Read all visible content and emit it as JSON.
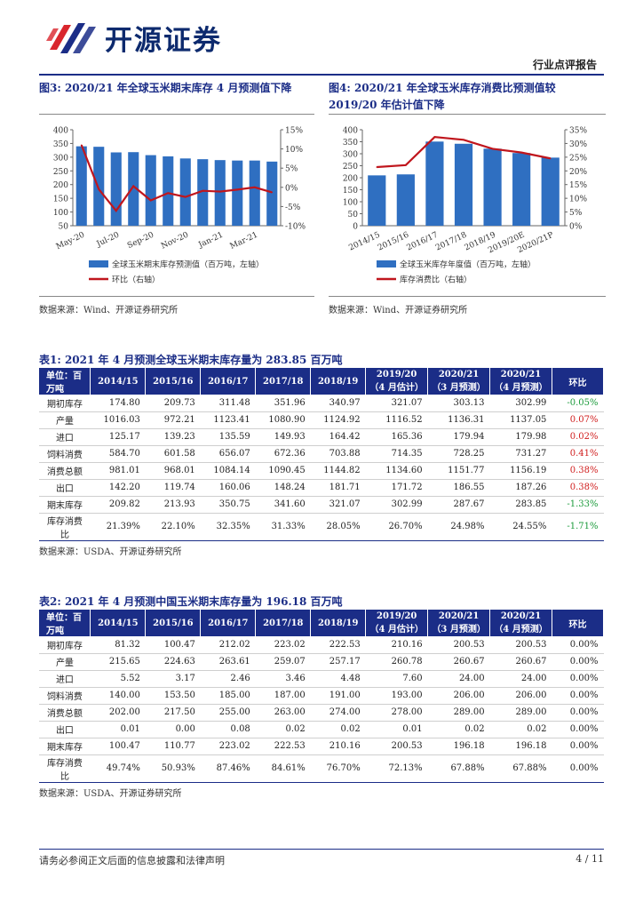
{
  "header": {
    "brand_name": "开源证券",
    "report_type": "行业点评报告"
  },
  "fig3": {
    "title": "图3: 2020/21 年全球玉米期末库存 4 月预测值下降",
    "legend_bar": "全球玉米期末库存预测值（百万吨，左轴）",
    "legend_line": "环比（右轴）",
    "source": "数据来源：Wind、开源证券研究所",
    "colors": {
      "bar": "#2f6fc1",
      "line": "#c0161d"
    },
    "chart_data": {
      "type": "bar+line",
      "categories": [
        "May-20",
        "Jun-20",
        "Jul-20",
        "Aug-20",
        "Sep-20",
        "Oct-20",
        "Nov-20",
        "Dec-20",
        "Jan-21",
        "Feb-21",
        "Mar-21",
        "Apr-21"
      ],
      "x_tick_labels": [
        "May-20",
        "Jul-20",
        "Sep-20",
        "Nov-20",
        "Jan-21",
        "Mar-21"
      ],
      "series": [
        {
          "name": "全球玉米期末库存预测值（百万吨，左轴）",
          "axis": "left",
          "type": "bar",
          "values": [
            339.6,
            337.9,
            317.4,
            318.3,
            307.4,
            302.9,
            295.3,
            292.6,
            289.3,
            287.7,
            287.7,
            283.9
          ]
        },
        {
          "name": "环比（右轴）",
          "axis": "right",
          "type": "line",
          "values": [
            11.0,
            -0.5,
            -6.1,
            0.3,
            -3.4,
            -1.5,
            -2.5,
            -0.9,
            -1.1,
            -0.6,
            0.0,
            -1.3
          ]
        }
      ],
      "left_axis": {
        "min": 50,
        "max": 400,
        "ticks": [
          "50",
          "100",
          "150",
          "200",
          "250",
          "300",
          "350",
          "400"
        ]
      },
      "right_axis": {
        "min": -10,
        "max": 15,
        "ticks": [
          "-10%",
          "-5%",
          "0%",
          "5%",
          "10%",
          "15%"
        ]
      }
    }
  },
  "fig4": {
    "title": "图4: 2020/21 年全球玉米库存消费比预测值较 2019/20 年估计值下降",
    "legend_bar": "全球玉米库存年度值（百万吨，左轴）",
    "legend_line": "库存消费比（右轴）",
    "source": "数据来源：Wind、开源证券研究所",
    "colors": {
      "bar": "#2f6fc1",
      "line": "#c0161d"
    },
    "chart_data": {
      "type": "bar+line",
      "categories": [
        "2014/15",
        "2015/16",
        "2016/17",
        "2017/18",
        "2018/19",
        "2019/20E",
        "2020/21P"
      ],
      "series": [
        {
          "name": "全球玉米库存年度值（百万吨，左轴）",
          "axis": "left",
          "type": "bar",
          "values": [
            209.82,
            213.93,
            350.75,
            341.6,
            321.07,
            302.99,
            283.85
          ]
        },
        {
          "name": "库存消费比（右轴）",
          "axis": "right",
          "type": "line",
          "values": [
            21.39,
            22.1,
            32.35,
            31.33,
            28.05,
            26.7,
            24.55
          ]
        }
      ],
      "left_axis": {
        "min": 0,
        "max": 400,
        "ticks": [
          "0",
          "50",
          "100",
          "150",
          "200",
          "250",
          "300",
          "350",
          "400"
        ]
      },
      "right_axis": {
        "min": 0,
        "max": 35,
        "ticks": [
          "0%",
          "5%",
          "10%",
          "15%",
          "20%",
          "25%",
          "30%",
          "35%"
        ]
      }
    }
  },
  "table1": {
    "title": "表1: 2021 年 4 月预测全球玉米期末库存量为 283.85 百万吨",
    "headers": [
      "单位：百万吨",
      "2014/15",
      "2015/16",
      "2016/17",
      "2017/18",
      "2018/19",
      "2019/20（4 月估计）",
      "2020/21（3 月预测）",
      "2020/21（4 月预测）",
      "环比"
    ],
    "rows": [
      {
        "label": "期初库存",
        "values": [
          "174.80",
          "209.73",
          "311.48",
          "351.96",
          "340.97",
          "321.07",
          "303.13",
          "302.99"
        ],
        "change": "-0.05%",
        "dir": "neg"
      },
      {
        "label": "产量",
        "values": [
          "1016.03",
          "972.21",
          "1123.41",
          "1080.90",
          "1124.92",
          "1116.52",
          "1136.31",
          "1137.05"
        ],
        "change": "0.07%",
        "dir": "pos"
      },
      {
        "label": "进口",
        "values": [
          "125.17",
          "139.23",
          "135.59",
          "149.93",
          "164.42",
          "165.36",
          "179.94",
          "179.98"
        ],
        "change": "0.02%",
        "dir": "pos"
      },
      {
        "label": "饲料消费",
        "values": [
          "584.70",
          "601.58",
          "656.07",
          "672.36",
          "703.88",
          "714.35",
          "728.25",
          "731.27"
        ],
        "change": "0.41%",
        "dir": "pos"
      },
      {
        "label": "消费总额",
        "values": [
          "981.01",
          "968.01",
          "1084.14",
          "1090.45",
          "1144.82",
          "1134.60",
          "1151.77",
          "1156.19"
        ],
        "change": "0.38%",
        "dir": "pos"
      },
      {
        "label": "出口",
        "values": [
          "142.20",
          "119.74",
          "160.06",
          "148.24",
          "181.71",
          "171.72",
          "186.55",
          "187.26"
        ],
        "change": "0.38%",
        "dir": "pos"
      },
      {
        "label": "期末库存",
        "values": [
          "209.82",
          "213.93",
          "350.75",
          "341.60",
          "321.07",
          "302.99",
          "287.67",
          "283.85"
        ],
        "change": "-1.33%",
        "dir": "neg"
      },
      {
        "label": "库存消费比",
        "values": [
          "21.39%",
          "22.10%",
          "32.35%",
          "31.33%",
          "28.05%",
          "26.70%",
          "24.98%",
          "24.55%"
        ],
        "change": "-1.71%",
        "dir": "neg"
      }
    ],
    "source": "数据来源：USDA、开源证券研究所"
  },
  "table2": {
    "title": "表2: 2021 年 4 月预测中国玉米期末库存量为 196.18 百万吨",
    "headers": [
      "单位：百万吨",
      "2014/15",
      "2015/16",
      "2016/17",
      "2017/18",
      "2018/19",
      "2019/20（4 月估计）",
      "2020/21（3 月预测）",
      "2020/21（4 月预测）",
      "环比"
    ],
    "rows": [
      {
        "label": "期初库存",
        "values": [
          "81.32",
          "100.47",
          "212.02",
          "223.02",
          "222.53",
          "210.16",
          "200.53",
          "200.53"
        ],
        "change": "0.00%",
        "dir": "none"
      },
      {
        "label": "产量",
        "values": [
          "215.65",
          "224.63",
          "263.61",
          "259.07",
          "257.17",
          "260.78",
          "260.67",
          "260.67"
        ],
        "change": "0.00%",
        "dir": "none"
      },
      {
        "label": "进口",
        "values": [
          "5.52",
          "3.17",
          "2.46",
          "3.46",
          "4.48",
          "7.60",
          "24.00",
          "24.00"
        ],
        "change": "0.00%",
        "dir": "none"
      },
      {
        "label": "饲料消费",
        "values": [
          "140.00",
          "153.50",
          "185.00",
          "187.00",
          "191.00",
          "193.00",
          "206.00",
          "206.00"
        ],
        "change": "0.00%",
        "dir": "none"
      },
      {
        "label": "消费总额",
        "values": [
          "202.00",
          "217.50",
          "255.00",
          "263.00",
          "274.00",
          "278.00",
          "289.00",
          "289.00"
        ],
        "change": "0.00%",
        "dir": "none"
      },
      {
        "label": "出口",
        "values": [
          "0.01",
          "0.00",
          "0.08",
          "0.02",
          "0.02",
          "0.01",
          "0.02",
          "0.02"
        ],
        "change": "0.00%",
        "dir": "none"
      },
      {
        "label": "期末库存",
        "values": [
          "100.47",
          "110.77",
          "223.02",
          "222.53",
          "210.16",
          "200.53",
          "196.18",
          "196.18"
        ],
        "change": "0.00%",
        "dir": "none"
      },
      {
        "label": "库存消费比",
        "values": [
          "49.74%",
          "50.93%",
          "87.46%",
          "84.61%",
          "76.70%",
          "72.13%",
          "67.88%",
          "67.88%"
        ],
        "change": "0.00%",
        "dir": "none"
      }
    ],
    "source": "数据来源：USDA、开源证券研究所"
  },
  "footer": {
    "disclaimer": "请务必参阅正文后面的信息披露和法律声明",
    "page": "4 / 11"
  }
}
